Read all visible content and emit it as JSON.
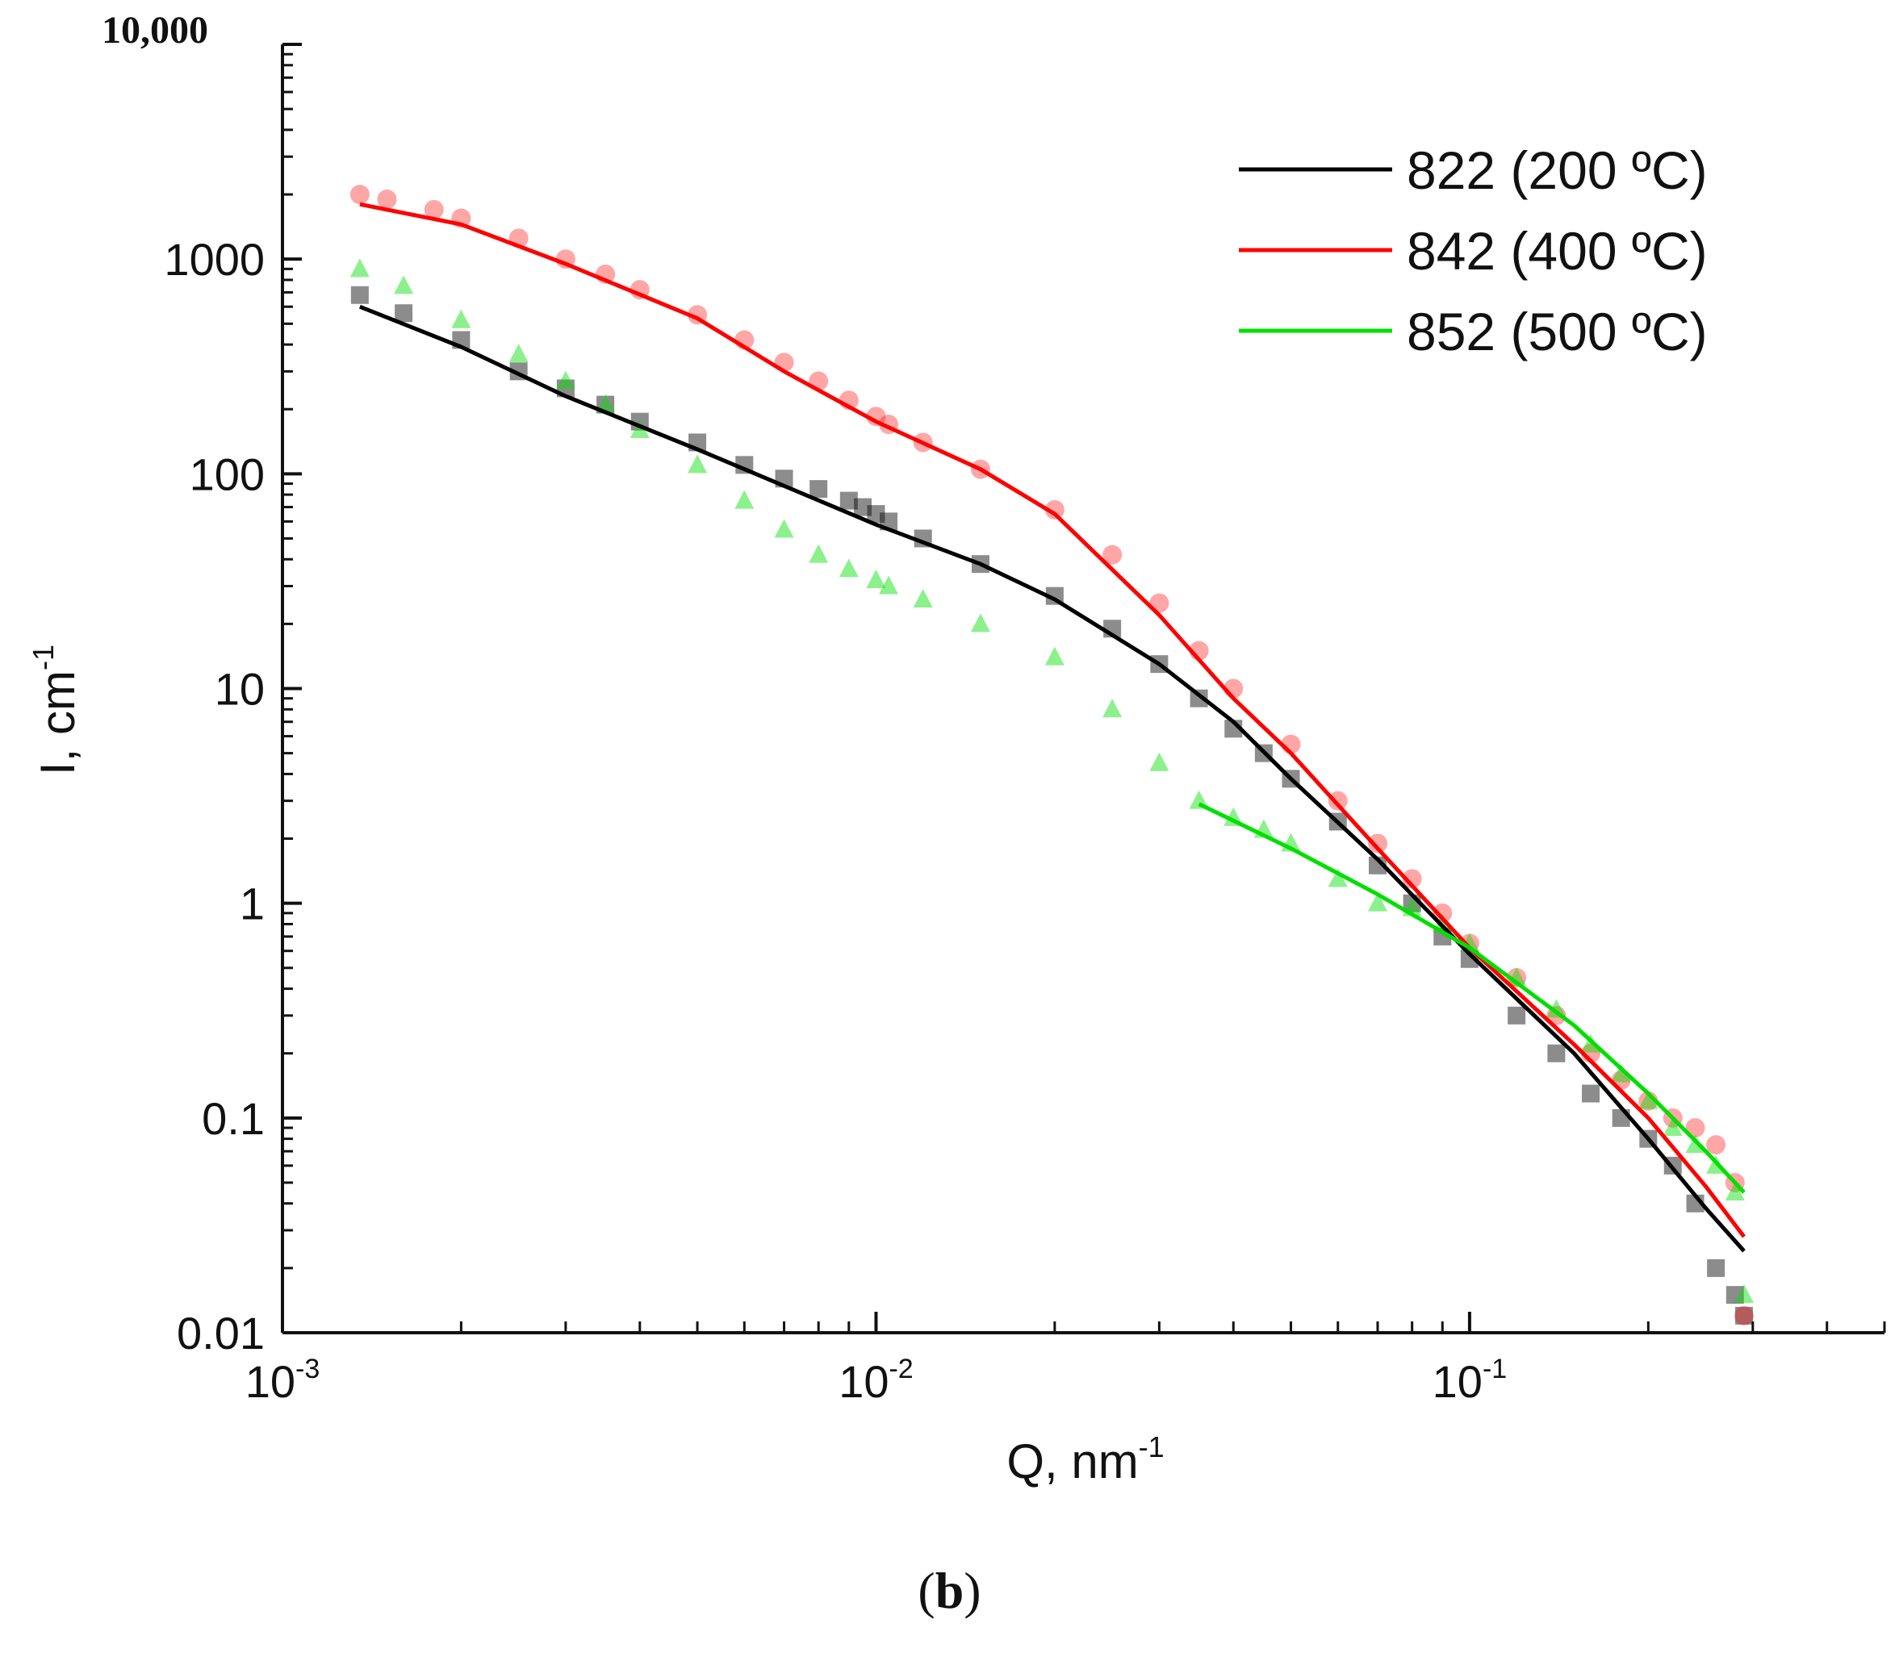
{
  "figure": {
    "panel_caption_open": "(",
    "panel_caption_letter": "b",
    "panel_caption_close": ")"
  },
  "chart_data": {
    "type": "scatter",
    "scale": {
      "x": "log",
      "y": "log"
    },
    "xlim": [
      0.001,
      0.5
    ],
    "ylim": [
      0.01,
      10000
    ],
    "xlabel": {
      "main": "Q, nm",
      "sup": "-1"
    },
    "ylabel": {
      "main": "I, cm",
      "sup": "-1"
    },
    "x_ticks": [
      {
        "value": 0.001,
        "base": "10",
        "exp": "-3"
      },
      {
        "value": 0.01,
        "base": "10",
        "exp": "-2"
      },
      {
        "value": 0.1,
        "base": "10",
        "exp": "-1"
      }
    ],
    "y_ticks": [
      {
        "value": 0.01,
        "label": "0.01"
      },
      {
        "value": 0.1,
        "label": "0.1"
      },
      {
        "value": 1,
        "label": "1"
      },
      {
        "value": 10,
        "label": "10"
      },
      {
        "value": 100,
        "label": "100"
      },
      {
        "value": 1000,
        "label": "1000"
      },
      {
        "value": 10000,
        "label": "10,000"
      }
    ],
    "legend_position": "top-right",
    "series": [
      {
        "name": "822 (200 ºC)",
        "color": "#000000",
        "marker": "square",
        "fit": [
          [
            0.00135,
            600
          ],
          [
            0.002,
            390
          ],
          [
            0.003,
            230
          ],
          [
            0.005,
            130
          ],
          [
            0.01,
            58
          ],
          [
            0.015,
            38
          ],
          [
            0.02,
            26
          ],
          [
            0.03,
            13
          ],
          [
            0.04,
            7
          ],
          [
            0.05,
            3.8
          ],
          [
            0.07,
            1.6
          ],
          [
            0.1,
            0.58
          ],
          [
            0.15,
            0.2
          ],
          [
            0.2,
            0.08
          ],
          [
            0.25,
            0.038
          ],
          [
            0.29,
            0.024
          ]
        ],
        "points": [
          [
            0.00135,
            680
          ],
          [
            0.0016,
            560
          ],
          [
            0.002,
            420
          ],
          [
            0.0025,
            300
          ],
          [
            0.003,
            250
          ],
          [
            0.0035,
            210
          ],
          [
            0.004,
            175
          ],
          [
            0.005,
            140
          ],
          [
            0.006,
            110
          ],
          [
            0.007,
            95
          ],
          [
            0.008,
            85
          ],
          [
            0.009,
            75
          ],
          [
            0.0095,
            70
          ],
          [
            0.01,
            65
          ],
          [
            0.0105,
            60
          ],
          [
            0.012,
            50
          ],
          [
            0.015,
            38
          ],
          [
            0.02,
            27
          ],
          [
            0.025,
            19
          ],
          [
            0.03,
            13
          ],
          [
            0.035,
            9
          ],
          [
            0.04,
            6.5
          ],
          [
            0.045,
            5
          ],
          [
            0.05,
            3.8
          ],
          [
            0.06,
            2.4
          ],
          [
            0.07,
            1.5
          ],
          [
            0.08,
            1.0
          ],
          [
            0.09,
            0.7
          ],
          [
            0.1,
            0.55
          ],
          [
            0.12,
            0.3
          ],
          [
            0.14,
            0.2
          ],
          [
            0.16,
            0.13
          ],
          [
            0.18,
            0.1
          ],
          [
            0.2,
            0.08
          ],
          [
            0.22,
            0.06
          ],
          [
            0.24,
            0.04
          ],
          [
            0.26,
            0.02
          ],
          [
            0.28,
            0.015
          ],
          [
            0.29,
            0.012
          ]
        ]
      },
      {
        "name": "842 (400 ºC)",
        "color": "#ff0000",
        "marker": "circle",
        "fit": [
          [
            0.00135,
            1800
          ],
          [
            0.002,
            1450
          ],
          [
            0.003,
            950
          ],
          [
            0.005,
            530
          ],
          [
            0.007,
            300
          ],
          [
            0.01,
            175
          ],
          [
            0.015,
            105
          ],
          [
            0.02,
            65
          ],
          [
            0.03,
            22
          ],
          [
            0.04,
            9
          ],
          [
            0.05,
            5
          ],
          [
            0.07,
            1.8
          ],
          [
            0.1,
            0.62
          ],
          [
            0.15,
            0.22
          ],
          [
            0.2,
            0.1
          ],
          [
            0.25,
            0.048
          ],
          [
            0.29,
            0.028
          ]
        ],
        "points": [
          [
            0.00135,
            2000
          ],
          [
            0.0015,
            1900
          ],
          [
            0.0018,
            1700
          ],
          [
            0.002,
            1550
          ],
          [
            0.0025,
            1250
          ],
          [
            0.003,
            1000
          ],
          [
            0.0035,
            850
          ],
          [
            0.004,
            720
          ],
          [
            0.005,
            550
          ],
          [
            0.006,
            420
          ],
          [
            0.007,
            330
          ],
          [
            0.008,
            270
          ],
          [
            0.009,
            220
          ],
          [
            0.01,
            185
          ],
          [
            0.0105,
            170
          ],
          [
            0.012,
            140
          ],
          [
            0.015,
            105
          ],
          [
            0.02,
            68
          ],
          [
            0.025,
            42
          ],
          [
            0.03,
            25
          ],
          [
            0.035,
            15
          ],
          [
            0.04,
            10
          ],
          [
            0.05,
            5.5
          ],
          [
            0.06,
            3
          ],
          [
            0.07,
            1.9
          ],
          [
            0.08,
            1.3
          ],
          [
            0.09,
            0.9
          ],
          [
            0.1,
            0.65
          ],
          [
            0.12,
            0.45
          ],
          [
            0.14,
            0.3
          ],
          [
            0.16,
            0.2
          ],
          [
            0.18,
            0.15
          ],
          [
            0.2,
            0.12
          ],
          [
            0.22,
            0.1
          ],
          [
            0.24,
            0.09
          ],
          [
            0.26,
            0.075
          ],
          [
            0.28,
            0.05
          ],
          [
            0.29,
            0.012
          ]
        ]
      },
      {
        "name": "852 (500 ºC)",
        "color": "#00e000",
        "marker": "triangle",
        "fit": [
          [
            0.035,
            2.9
          ],
          [
            0.05,
            1.8
          ],
          [
            0.07,
            1.1
          ],
          [
            0.1,
            0.62
          ],
          [
            0.15,
            0.27
          ],
          [
            0.2,
            0.13
          ],
          [
            0.25,
            0.07
          ],
          [
            0.29,
            0.045
          ]
        ],
        "points": [
          [
            0.00135,
            900
          ],
          [
            0.0016,
            750
          ],
          [
            0.002,
            520
          ],
          [
            0.0025,
            360
          ],
          [
            0.003,
            270
          ],
          [
            0.0035,
            210
          ],
          [
            0.004,
            160
          ],
          [
            0.005,
            110
          ],
          [
            0.006,
            75
          ],
          [
            0.007,
            55
          ],
          [
            0.008,
            42
          ],
          [
            0.009,
            36
          ],
          [
            0.01,
            32
          ],
          [
            0.0105,
            30
          ],
          [
            0.012,
            26
          ],
          [
            0.015,
            20
          ],
          [
            0.02,
            14
          ],
          [
            0.025,
            8
          ],
          [
            0.03,
            4.5
          ],
          [
            0.035,
            3
          ],
          [
            0.04,
            2.5
          ],
          [
            0.045,
            2.2
          ],
          [
            0.05,
            1.9
          ],
          [
            0.06,
            1.3
          ],
          [
            0.07,
            1.0
          ],
          [
            0.08,
            0.95
          ],
          [
            0.09,
            0.8
          ],
          [
            0.1,
            0.65
          ],
          [
            0.12,
            0.45
          ],
          [
            0.14,
            0.32
          ],
          [
            0.16,
            0.22
          ],
          [
            0.18,
            0.16
          ],
          [
            0.2,
            0.12
          ],
          [
            0.22,
            0.09
          ],
          [
            0.24,
            0.075
          ],
          [
            0.26,
            0.06
          ],
          [
            0.28,
            0.045
          ],
          [
            0.29,
            0.015
          ]
        ]
      }
    ]
  }
}
